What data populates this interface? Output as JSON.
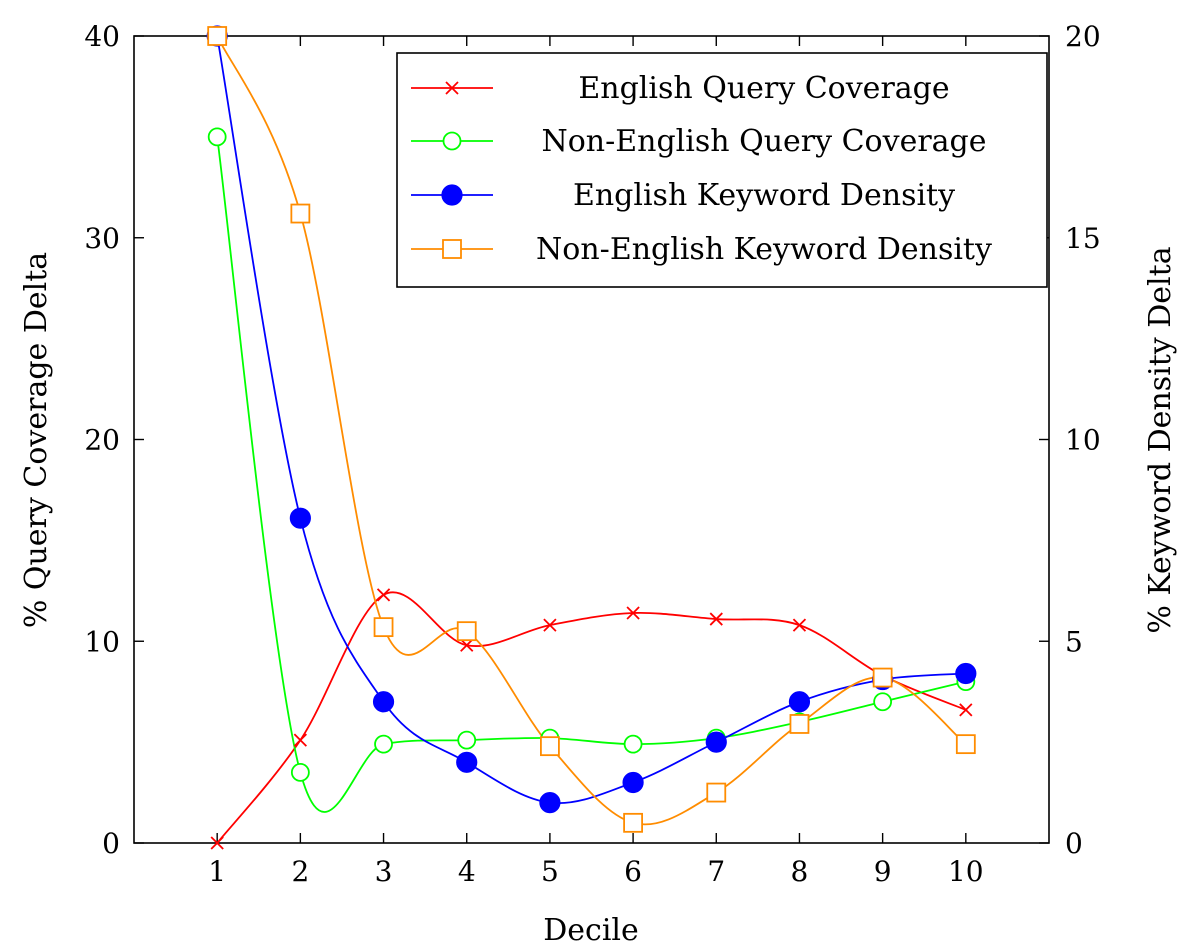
{
  "chart_data": {
    "type": "line",
    "xlabel": "Decile",
    "ylabel_left": "% Query Coverage Delta",
    "ylabel_right": "% Keyword Density Delta",
    "x": [
      1,
      2,
      3,
      4,
      5,
      6,
      7,
      8,
      9,
      10
    ],
    "xlim": [
      0,
      11
    ],
    "ylim_left": [
      0,
      40
    ],
    "ylim_right": [
      0,
      20
    ],
    "yticks_left": [
      0,
      10,
      20,
      30,
      40
    ],
    "yticks_right": [
      0,
      5,
      10,
      15,
      20
    ],
    "grid": false,
    "legend_position": "top-right",
    "smooth": true,
    "series": [
      {
        "name": "English Query Coverage",
        "axis": "left",
        "color": "#ff0000",
        "marker": "x",
        "values": [
          0,
          5.1,
          12.3,
          9.8,
          10.8,
          11.4,
          11.1,
          10.8,
          8.3,
          6.6
        ]
      },
      {
        "name": "Non-English Query Coverage",
        "axis": "left",
        "color": "#00ff00",
        "marker": "circle-open",
        "values": [
          35,
          3.5,
          4.9,
          5.1,
          5.2,
          4.9,
          5.2,
          6.0,
          7.0,
          8.0
        ]
      },
      {
        "name": "English Keyword Density",
        "axis": "right",
        "color": "#0000ff",
        "marker": "circle-filled",
        "values": [
          20,
          8.05,
          3.5,
          2.0,
          1.0,
          1.5,
          2.5,
          3.5,
          4.05,
          4.2
        ]
      },
      {
        "name": "Non-English Keyword Density",
        "axis": "right",
        "color": "#ff8c00",
        "marker": "square-open",
        "values": [
          20,
          15.6,
          5.35,
          5.25,
          2.4,
          0.5,
          1.25,
          2.95,
          4.1,
          2.45
        ]
      }
    ]
  }
}
